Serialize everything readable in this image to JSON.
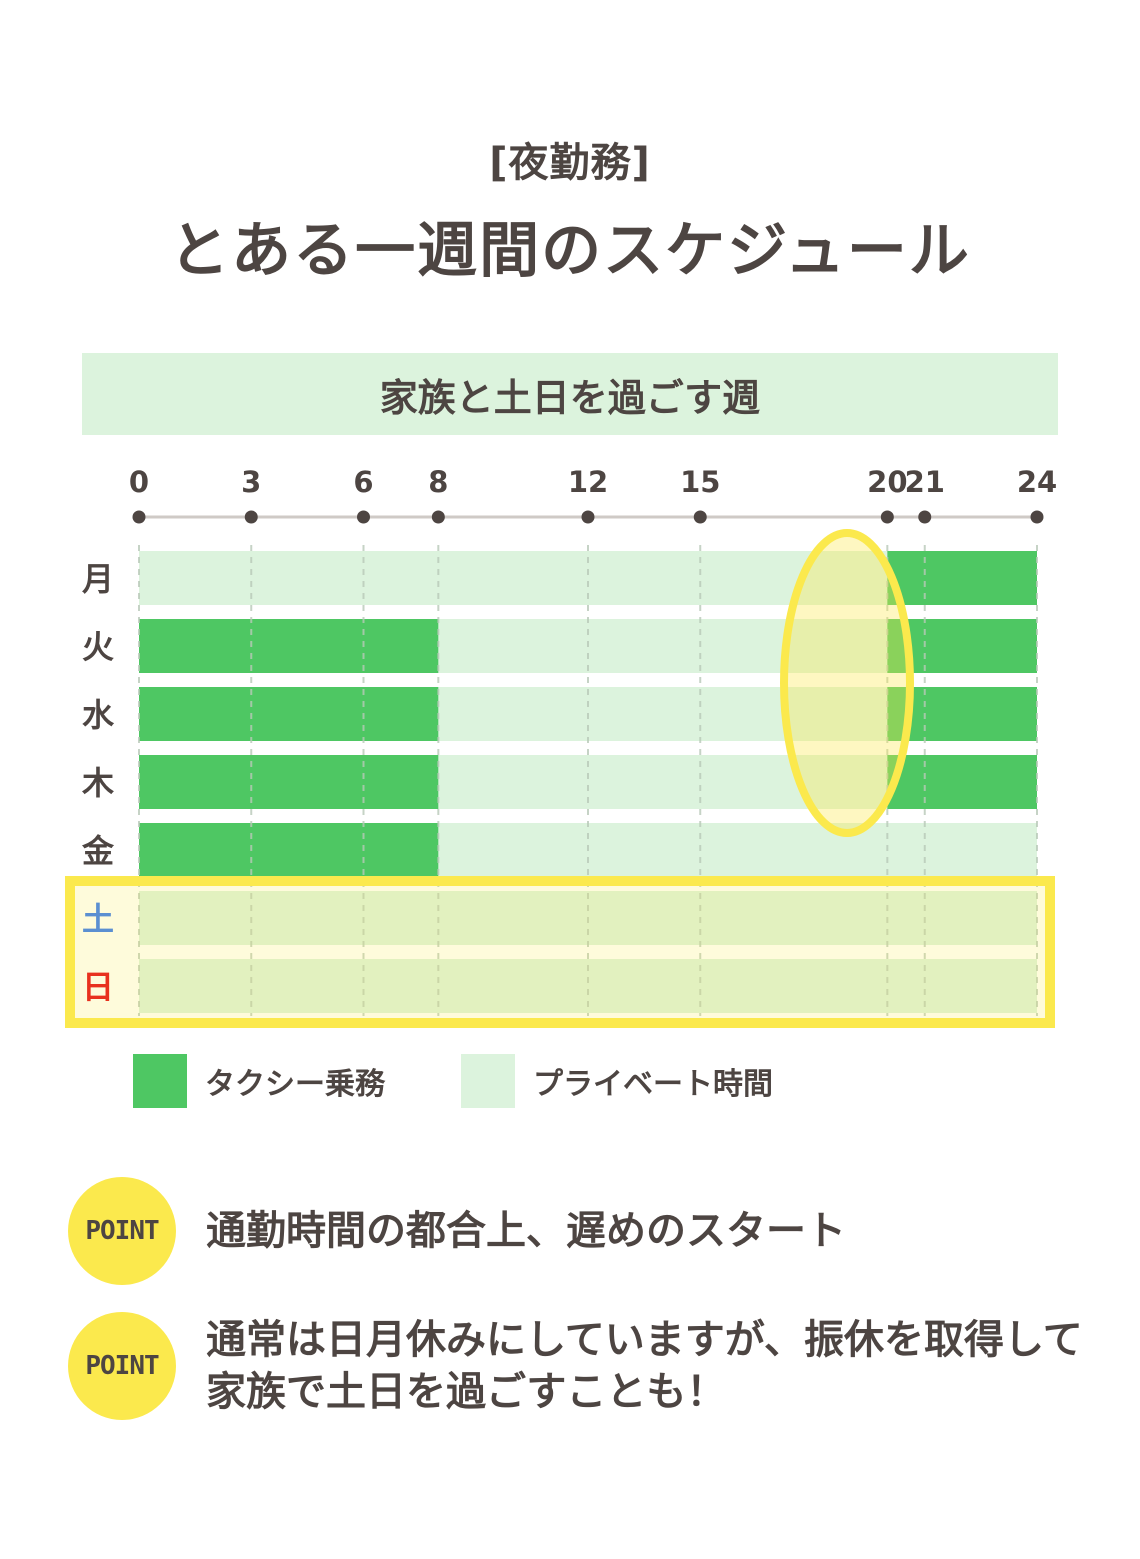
{
  "header": {
    "subtitle": "[夜勤務]",
    "title": "とある一週間のスケジュール"
  },
  "banner": "家族と土日を過ごす週",
  "chart_data": {
    "type": "bar",
    "orientation": "horizontal-timeline",
    "x_ticks": [
      0,
      3,
      6,
      8,
      12,
      15,
      20,
      21,
      24
    ],
    "xlim": [
      0,
      24
    ],
    "grid": true,
    "categories": [
      "月",
      "火",
      "水",
      "木",
      "金",
      "土",
      "日"
    ],
    "category_colors": [
      "#4d4542",
      "#4d4542",
      "#4d4542",
      "#4d4542",
      "#4d4542",
      "#5b8fd1",
      "#e8311e"
    ],
    "series": [
      {
        "name": "タクシー乗務",
        "color": "#4ec763",
        "intervals": [
          [
            [
              20,
              24
            ]
          ],
          [
            [
              0,
              8
            ],
            [
              20,
              24
            ]
          ],
          [
            [
              0,
              8
            ],
            [
              20,
              24
            ]
          ],
          [
            [
              0,
              8
            ],
            [
              20,
              24
            ]
          ],
          [
            [
              0,
              8
            ]
          ],
          [],
          []
        ]
      },
      {
        "name": "プライベート時間",
        "color": "#dcf3dd",
        "intervals": [
          [
            [
              0,
              20
            ]
          ],
          [
            [
              8,
              20
            ]
          ],
          [
            [
              8,
              20
            ]
          ],
          [
            [
              8,
              20
            ]
          ],
          [
            [
              8,
              24
            ]
          ],
          [
            [
              0,
              24
            ]
          ],
          [
            [
              0,
              24
            ]
          ]
        ]
      }
    ],
    "highlights": {
      "ellipse": {
        "x_center": 20,
        "categories": [
          "月",
          "木"
        ],
        "color": "#fbe94d"
      },
      "weekend_box": {
        "categories": [
          "土",
          "日"
        ],
        "color": "#fbe94d"
      }
    }
  },
  "points": [
    {
      "badge": "POINT",
      "text": "通勤時間の都合上、遅めのスタート"
    },
    {
      "badge": "POINT",
      "text": "通常は日月休みにしていますが、振休を取得して家族で土日を過ごすことも！"
    }
  ]
}
